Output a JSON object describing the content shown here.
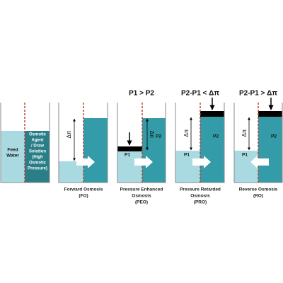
{
  "panels": [
    {
      "left_text": [
        "Feed",
        "Water"
      ],
      "right_text": [
        "Osmotic",
        "Agent",
        "/ Draw",
        "Solution",
        "(High",
        "Osmotic",
        "Pressure)"
      ]
    },
    {
      "delta": "Δπ",
      "caption": [
        "Forward Osmosis",
        "(FO)"
      ]
    },
    {
      "title": "P1 > P2",
      "left_text": "P1",
      "right_text": "P2",
      "delta": "Δπ",
      "caption": [
        "Pressure Enhanced",
        "Osmosis",
        "(PEO)"
      ]
    },
    {
      "title": "P2-P1 < Δπ",
      "left_text": "P1",
      "right_text": "P2",
      "delta": "Δπ",
      "caption": [
        "Pressure Retarded",
        "Osmosis",
        "(PRO)"
      ]
    },
    {
      "title": "P2-P1 > Δπ",
      "left_text": "P1",
      "right_text": "P2",
      "delta": "Δπ",
      "caption": [
        "Reverse Osmosis",
        "(RO)"
      ]
    }
  ]
}
